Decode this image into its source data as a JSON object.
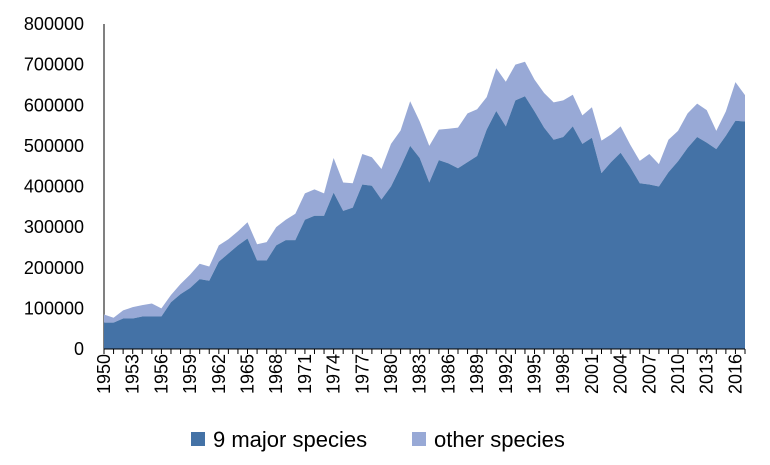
{
  "chart_data": {
    "type": "area",
    "stacked": true,
    "title": "",
    "xlabel": "",
    "ylabel": "",
    "ylim": [
      0,
      800000
    ],
    "yticks": [
      0,
      100000,
      200000,
      300000,
      400000,
      500000,
      600000,
      700000,
      800000
    ],
    "yticklabels": [
      "0",
      "100000",
      "200000",
      "300000",
      "400000",
      "500000",
      "600000",
      "700000",
      "800000"
    ],
    "xticklabels": [
      "1950",
      "1953",
      "1956",
      "1959",
      "1962",
      "1965",
      "1968",
      "1971",
      "1974",
      "1977",
      "1980",
      "1983",
      "1986",
      "1989",
      "1992",
      "1995",
      "1998",
      "2001",
      "2004",
      "2007",
      "2010",
      "2013",
      "2016"
    ],
    "grid": false,
    "legend_position": "bottom",
    "x": [
      1950,
      1951,
      1952,
      1953,
      1954,
      1955,
      1956,
      1957,
      1958,
      1959,
      1960,
      1961,
      1962,
      1963,
      1964,
      1965,
      1966,
      1967,
      1968,
      1969,
      1970,
      1971,
      1972,
      1973,
      1974,
      1975,
      1976,
      1977,
      1978,
      1979,
      1980,
      1981,
      1982,
      1983,
      1984,
      1985,
      1986,
      1987,
      1988,
      1989,
      1990,
      1991,
      1992,
      1993,
      1994,
      1995,
      1996,
      1997,
      1998,
      1999,
      2000,
      2001,
      2002,
      2003,
      2004,
      2005,
      2006,
      2007,
      2008,
      2009,
      2010,
      2011,
      2012,
      2013,
      2014,
      2015,
      2016,
      2017
    ],
    "series": [
      {
        "name": "9 major species",
        "color": "#4472a6",
        "values": [
          65000,
          65000,
          75000,
          75000,
          80000,
          80000,
          80000,
          115000,
          135000,
          150000,
          172000,
          168000,
          215000,
          235000,
          255000,
          272000,
          218000,
          218000,
          255000,
          268000,
          268000,
          318000,
          328000,
          328000,
          385000,
          340000,
          348000,
          405000,
          402000,
          368000,
          400000,
          448000,
          500000,
          470000,
          410000,
          465000,
          457000,
          445000,
          460000,
          475000,
          540000,
          586000,
          548000,
          612000,
          622000,
          585000,
          545000,
          515000,
          522000,
          548000,
          505000,
          520000,
          433000,
          460000,
          483000,
          448000,
          408000,
          405000,
          400000,
          435000,
          462000,
          495000,
          522000,
          508000,
          492000,
          525000,
          562000,
          560000
        ]
      },
      {
        "name": "other species",
        "color": "#98a9d6",
        "values": [
          20000,
          12000,
          20000,
          28000,
          28000,
          32000,
          20000,
          18000,
          25000,
          33000,
          38000,
          35000,
          40000,
          35000,
          35000,
          40000,
          40000,
          45000,
          45000,
          50000,
          65000,
          65000,
          65000,
          55000,
          85000,
          70000,
          60000,
          75000,
          70000,
          75000,
          105000,
          90000,
          110000,
          90000,
          90000,
          75000,
          85000,
          100000,
          120000,
          115000,
          80000,
          105000,
          110000,
          88000,
          85000,
          78000,
          85000,
          92000,
          90000,
          78000,
          70000,
          75000,
          80000,
          68000,
          65000,
          55000,
          55000,
          75000,
          55000,
          80000,
          75000,
          85000,
          82000,
          80000,
          45000,
          60000,
          95000,
          65000
        ]
      }
    ]
  }
}
